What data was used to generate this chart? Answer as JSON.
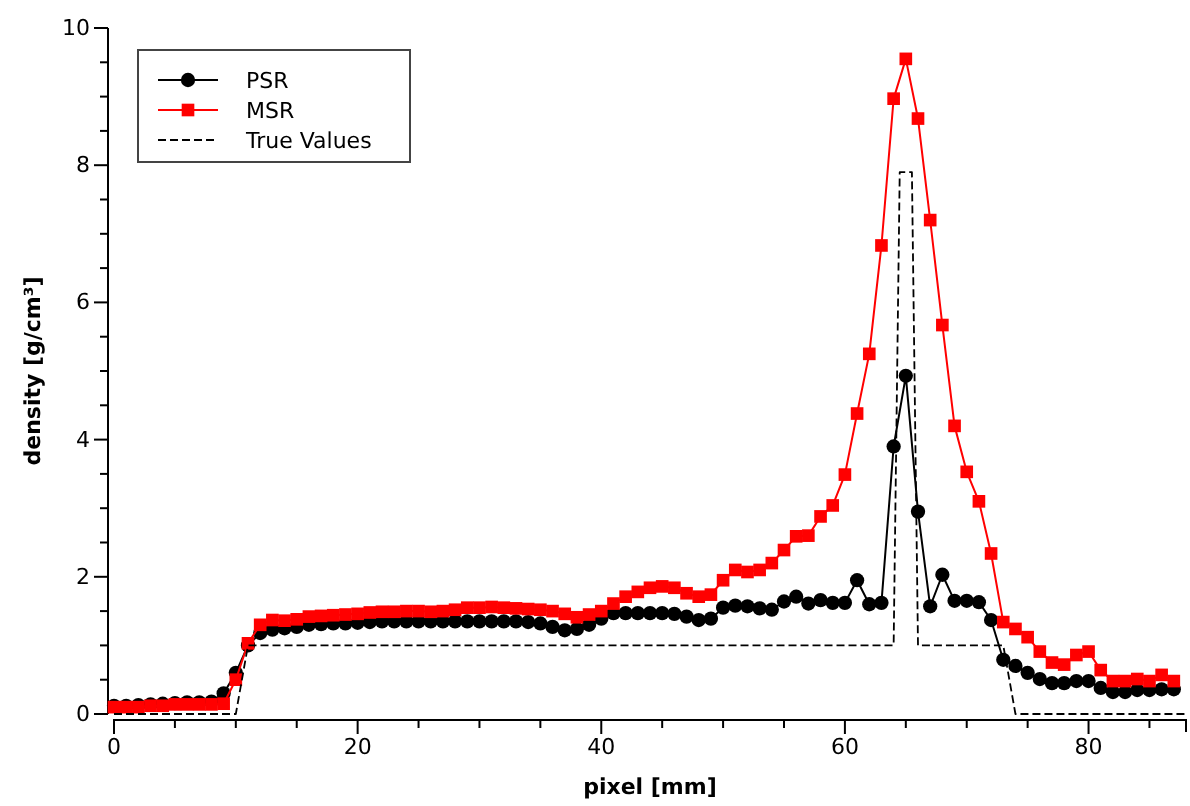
{
  "chart_data": {
    "type": "line",
    "xlabel": "pixel [mm]",
    "ylabel": "density [g/cm³]",
    "xlim": [
      0,
      88
    ],
    "ylim": [
      0,
      10
    ],
    "xticks": [
      0,
      {
        "value": 5,
        "label": null
      },
      {
        "value": 10,
        "label": null
      },
      {
        "value": 15,
        "label": null
      },
      20,
      {
        "value": 25,
        "label": null
      },
      {
        "value": 30,
        "label": null
      },
      {
        "value": 35,
        "label": null
      },
      40,
      {
        "value": 45,
        "label": null
      },
      {
        "value": 50,
        "label": null
      },
      {
        "value": 55,
        "label": null
      },
      60,
      {
        "value": 65,
        "label": null
      },
      {
        "value": 70,
        "label": null
      },
      {
        "value": 75,
        "label": null
      },
      80,
      {
        "value": 85,
        "label": null
      }
    ],
    "yticks": [
      0,
      {
        "value": 0.5,
        "label": null
      },
      {
        "value": 1,
        "label": null
      },
      {
        "value": 1.5,
        "label": null
      },
      2,
      {
        "value": 2.5,
        "label": null
      },
      {
        "value": 3,
        "label": null
      },
      {
        "value": 3.5,
        "label": null
      },
      4,
      {
        "value": 4.5,
        "label": null
      },
      {
        "value": 5,
        "label": null
      },
      {
        "value": 5.5,
        "label": null
      },
      6,
      {
        "value": 6.5,
        "label": null
      },
      {
        "value": 7,
        "label": null
      },
      {
        "value": 7.5,
        "label": null
      },
      8,
      {
        "value": 8.5,
        "label": null
      },
      {
        "value": 9,
        "label": null
      },
      {
        "value": 9.5,
        "label": null
      },
      10
    ],
    "grid": false,
    "legend": "top left",
    "series": [
      {
        "name": "PSR",
        "color": "#000000",
        "marker": "circle",
        "line_style": "solid",
        "x": [
          0,
          1,
          2,
          3,
          4,
          5,
          6,
          7,
          8,
          9,
          10,
          11,
          12,
          13,
          14,
          15,
          16,
          17,
          18,
          19,
          20,
          21,
          22,
          23,
          24,
          25,
          26,
          27,
          28,
          29,
          30,
          31,
          32,
          33,
          34,
          35,
          36,
          37,
          38,
          39,
          40,
          41,
          42,
          43,
          44,
          45,
          46,
          47,
          48,
          49,
          50,
          51,
          52,
          53,
          54,
          55,
          56,
          57,
          58,
          59,
          60,
          61,
          62,
          63,
          64,
          65,
          66,
          67,
          68,
          69,
          70,
          71,
          72,
          73,
          74,
          75,
          76,
          77,
          78,
          79,
          80,
          81,
          82,
          83,
          84,
          85,
          86,
          87
        ],
        "values": [
          0.12,
          0.12,
          0.13,
          0.14,
          0.15,
          0.16,
          0.17,
          0.17,
          0.18,
          0.3,
          0.6,
          1.0,
          1.18,
          1.23,
          1.25,
          1.27,
          1.3,
          1.31,
          1.32,
          1.32,
          1.33,
          1.34,
          1.35,
          1.35,
          1.35,
          1.35,
          1.35,
          1.35,
          1.35,
          1.35,
          1.35,
          1.35,
          1.35,
          1.35,
          1.34,
          1.32,
          1.27,
          1.22,
          1.24,
          1.3,
          1.39,
          1.47,
          1.47,
          1.47,
          1.47,
          1.47,
          1.46,
          1.42,
          1.37,
          1.39,
          1.55,
          1.58,
          1.57,
          1.54,
          1.52,
          1.64,
          1.71,
          1.61,
          1.66,
          1.62,
          1.62,
          1.95,
          1.6,
          1.62,
          3.9,
          4.93,
          2.95,
          1.57,
          2.03,
          1.65,
          1.65,
          1.63,
          1.37,
          0.79,
          0.7,
          0.6,
          0.51,
          0.45,
          0.45,
          0.48,
          0.48,
          0.38,
          0.32,
          0.32,
          0.35,
          0.35,
          0.36,
          0.36
        ]
      },
      {
        "name": "MSR",
        "color": "#ff0000",
        "marker": "square",
        "line_style": "solid",
        "x": [
          0,
          1,
          2,
          3,
          4,
          5,
          6,
          7,
          8,
          9,
          10,
          11,
          12,
          13,
          14,
          15,
          16,
          17,
          18,
          19,
          20,
          21,
          22,
          23,
          24,
          25,
          26,
          27,
          28,
          29,
          30,
          31,
          32,
          33,
          34,
          35,
          36,
          37,
          38,
          39,
          40,
          41,
          42,
          43,
          44,
          45,
          46,
          47,
          48,
          49,
          50,
          51,
          52,
          53,
          54,
          55,
          56,
          57,
          58,
          59,
          60,
          61,
          62,
          63,
          64,
          65,
          66,
          67,
          68,
          69,
          70,
          71,
          72,
          73,
          74,
          75,
          76,
          77,
          78,
          79,
          80,
          81,
          82,
          83,
          84,
          85,
          86,
          87
        ],
        "values": [
          0.1,
          0.1,
          0.1,
          0.12,
          0.12,
          0.14,
          0.14,
          0.14,
          0.14,
          0.15,
          0.5,
          1.03,
          1.3,
          1.37,
          1.36,
          1.38,
          1.42,
          1.43,
          1.44,
          1.45,
          1.46,
          1.48,
          1.49,
          1.49,
          1.5,
          1.5,
          1.49,
          1.5,
          1.52,
          1.55,
          1.55,
          1.56,
          1.55,
          1.54,
          1.53,
          1.52,
          1.5,
          1.46,
          1.41,
          1.45,
          1.5,
          1.61,
          1.71,
          1.78,
          1.84,
          1.86,
          1.84,
          1.76,
          1.71,
          1.74,
          1.95,
          2.1,
          2.07,
          2.1,
          2.2,
          2.39,
          2.59,
          2.6,
          2.88,
          3.04,
          3.49,
          4.38,
          5.25,
          6.83,
          8.97,
          9.55,
          8.68,
          7.2,
          5.67,
          4.2,
          3.53,
          3.1,
          2.34,
          1.34,
          1.24,
          1.12,
          0.91,
          0.75,
          0.72,
          0.86,
          0.91,
          0.64,
          0.48,
          0.48,
          0.51,
          0.48,
          0.57,
          0.48
        ]
      },
      {
        "name": "True Values",
        "color": "#000000",
        "marker": "none",
        "line_style": "dashed",
        "x": [
          0,
          10,
          11,
          64,
          64.5,
          65.5,
          66,
          73,
          74,
          88
        ],
        "values": [
          0,
          0,
          1,
          1,
          7.9,
          7.9,
          1,
          1,
          0,
          0
        ]
      }
    ]
  }
}
